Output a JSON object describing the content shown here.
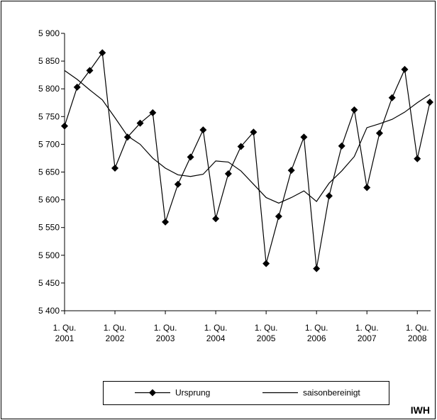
{
  "chart_data": {
    "type": "line",
    "categories": [
      "1. Qu. 2001",
      null,
      null,
      null,
      "1. Qu. 2002",
      null,
      null,
      null,
      "1. Qu. 2003",
      null,
      null,
      null,
      "1. Qu. 2004",
      null,
      null,
      null,
      "1. Qu. 2005",
      null,
      null,
      null,
      "1. Qu. 2006",
      null,
      null,
      null,
      "1. Qu. 2007",
      null,
      null,
      null,
      "1. Qu. 2008",
      null
    ],
    "series": [
      {
        "name": "Ursprung",
        "color": "#000000",
        "marker": "diamond",
        "values": [
          5733,
          5803,
          5833,
          5865,
          5657,
          5713,
          5738,
          5757,
          5560,
          5628,
          5677,
          5726,
          5566,
          5647,
          5696,
          5722,
          5485,
          5570,
          5653,
          5713,
          5476,
          5607,
          5697,
          5762,
          5622,
          5720,
          5784,
          5835,
          5674,
          5776
        ]
      },
      {
        "name": "saisonbereinigt",
        "color": "#000000",
        "values": [
          5833,
          5817,
          5798,
          5780,
          5748,
          5715,
          5700,
          5675,
          5657,
          5645,
          5642,
          5646,
          5670,
          5668,
          5652,
          5628,
          5604,
          5594,
          5604,
          5616,
          5597,
          5630,
          5652,
          5678,
          5730,
          5737,
          5745,
          5758,
          5775,
          5790
        ]
      }
    ],
    "ylim": [
      5400,
      5900
    ],
    "yticks": [
      {
        "value": 5400,
        "label": "5 400"
      },
      {
        "value": 5450,
        "label": "5 450"
      },
      {
        "value": 5500,
        "label": "5 500"
      },
      {
        "value": 5550,
        "label": "5 550"
      },
      {
        "value": 5600,
        "label": "5 600"
      },
      {
        "value": 5650,
        "label": "5 650"
      },
      {
        "value": 5700,
        "label": "5 700"
      },
      {
        "value": 5750,
        "label": "5 750"
      },
      {
        "value": 5800,
        "label": "5 800"
      },
      {
        "value": 5850,
        "label": "5 850"
      },
      {
        "value": 5900,
        "label": "5 900"
      }
    ],
    "grid": false,
    "legend": "bottom",
    "source": "IWH"
  }
}
